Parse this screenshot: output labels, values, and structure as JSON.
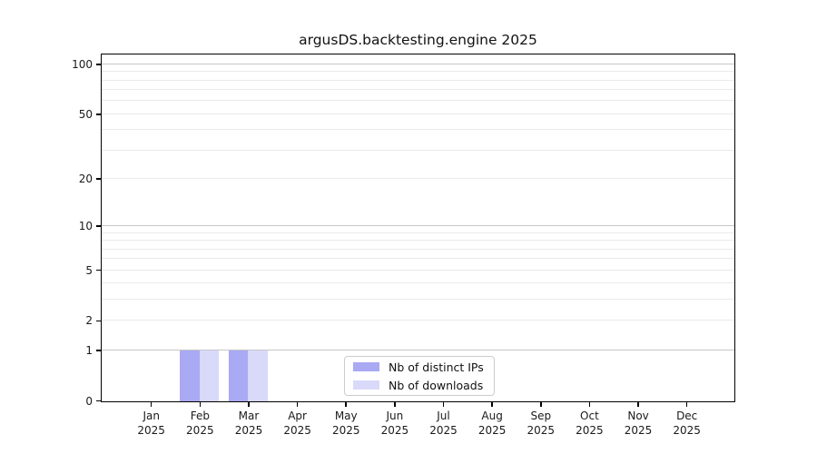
{
  "window": {
    "background": "#ffffff"
  },
  "chart_data": {
    "type": "bar",
    "title": "argusDS.backtesting.engine 2025",
    "categories": [
      "Jan",
      "Feb",
      "Mar",
      "Apr",
      "May",
      "Jun",
      "Jul",
      "Aug",
      "Sep",
      "Oct",
      "Nov",
      "Dec"
    ],
    "x_tick_year": "2025",
    "series": [
      {
        "name": "Nb of distinct IPs",
        "color": "#a9a9f4",
        "values": [
          0,
          1,
          1,
          0,
          0,
          0,
          0,
          0,
          0,
          0,
          0,
          0
        ]
      },
      {
        "name": "Nb of downloads",
        "color": "#d9d9f9",
        "values": [
          0,
          1,
          1,
          0,
          0,
          0,
          0,
          0,
          0,
          0,
          0,
          0
        ]
      }
    ],
    "y_axis": {
      "scale": "log1p",
      "ticks": [
        0,
        1,
        2,
        5,
        10,
        20,
        50,
        100
      ],
      "ylim": [
        0,
        114
      ],
      "major_gridlines": [
        1,
        10,
        100
      ],
      "minor_gridlines": [
        2,
        3,
        4,
        5,
        6,
        7,
        8,
        9,
        20,
        30,
        40,
        50,
        60,
        70,
        80,
        90
      ]
    },
    "legend": {
      "location": "lower center"
    },
    "colors": {
      "axis": "#000000",
      "tick_label": "#1a1a1a",
      "major_grid": "#c6c6c6",
      "minor_grid": "#eaeaea",
      "legend_border": "#cccccc",
      "background": "#ffffff"
    }
  }
}
